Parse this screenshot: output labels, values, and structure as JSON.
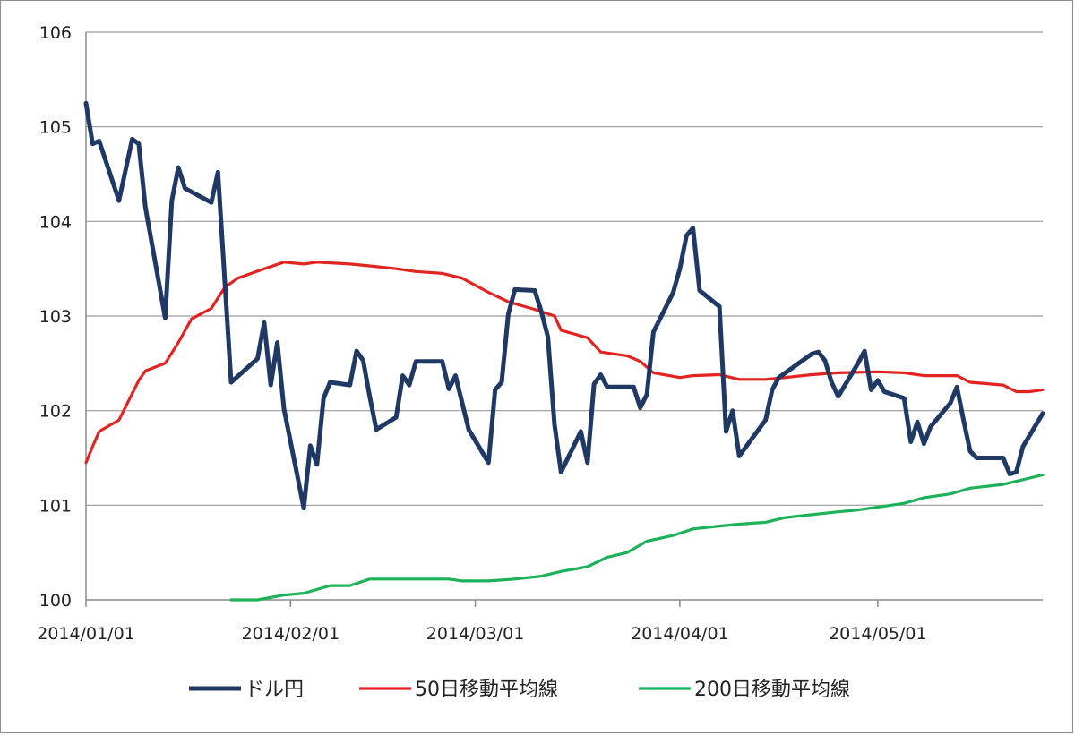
{
  "chart_data": {
    "type": "line",
    "title": "",
    "xlabel": "",
    "ylabel": "",
    "x_range": [
      "2014-01-01",
      "2014-05-26"
    ],
    "ylim": [
      100,
      106
    ],
    "y_ticks": [
      "100",
      "101",
      "102",
      "103",
      "104",
      "105",
      "106"
    ],
    "x_ticks": [
      {
        "date": "2014-01-01",
        "label": "2014/01/01"
      },
      {
        "date": "2014-02-01",
        "label": "2014/02/01"
      },
      {
        "date": "2014-03-01",
        "label": "2014/03/01"
      },
      {
        "date": "2014-04-01",
        "label": "2014/04/01"
      },
      {
        "date": "2014-05-01",
        "label": "2014/05/01"
      }
    ],
    "grid": "horizontal",
    "legend_position": "bottom",
    "series": [
      {
        "name": "ドル円",
        "color": "#1f3864",
        "points": [
          [
            "2014-01-01",
            105.25
          ],
          [
            "2014-01-02",
            104.82
          ],
          [
            "2014-01-03",
            104.85
          ],
          [
            "2014-01-06",
            104.22
          ],
          [
            "2014-01-08",
            104.87
          ],
          [
            "2014-01-09",
            104.82
          ],
          [
            "2014-01-10",
            104.15
          ],
          [
            "2014-01-13",
            102.98
          ],
          [
            "2014-01-14",
            104.22
          ],
          [
            "2014-01-15",
            104.57
          ],
          [
            "2014-01-16",
            104.35
          ],
          [
            "2014-01-20",
            104.2
          ],
          [
            "2014-01-21",
            104.52
          ],
          [
            "2014-01-23",
            102.3
          ],
          [
            "2014-01-27",
            102.55
          ],
          [
            "2014-01-28",
            102.93
          ],
          [
            "2014-01-29",
            102.27
          ],
          [
            "2014-01-30",
            102.72
          ],
          [
            "2014-01-31",
            102.02
          ],
          [
            "2014-02-03",
            100.97
          ],
          [
            "2014-02-04",
            101.63
          ],
          [
            "2014-02-05",
            101.43
          ],
          [
            "2014-02-06",
            102.13
          ],
          [
            "2014-02-07",
            102.3
          ],
          [
            "2014-02-10",
            102.27
          ],
          [
            "2014-02-11",
            102.63
          ],
          [
            "2014-02-12",
            102.53
          ],
          [
            "2014-02-13",
            102.15
          ],
          [
            "2014-02-14",
            101.8
          ],
          [
            "2014-02-17",
            101.93
          ],
          [
            "2014-02-18",
            102.37
          ],
          [
            "2014-02-19",
            102.27
          ],
          [
            "2014-02-20",
            102.52
          ],
          [
            "2014-02-24",
            102.52
          ],
          [
            "2014-02-25",
            102.23
          ],
          [
            "2014-02-26",
            102.37
          ],
          [
            "2014-02-28",
            101.8
          ],
          [
            "2014-03-03",
            101.45
          ],
          [
            "2014-03-04",
            102.22
          ],
          [
            "2014-03-05",
            102.3
          ],
          [
            "2014-03-06",
            103.02
          ],
          [
            "2014-03-07",
            103.28
          ],
          [
            "2014-03-10",
            103.27
          ],
          [
            "2014-03-11",
            103.05
          ],
          [
            "2014-03-12",
            102.78
          ],
          [
            "2014-03-13",
            101.85
          ],
          [
            "2014-03-14",
            101.35
          ],
          [
            "2014-03-17",
            101.78
          ],
          [
            "2014-03-18",
            101.45
          ],
          [
            "2014-03-19",
            102.28
          ],
          [
            "2014-03-20",
            102.38
          ],
          [
            "2014-03-21",
            102.25
          ],
          [
            "2014-03-25",
            102.25
          ],
          [
            "2014-03-26",
            102.03
          ],
          [
            "2014-03-27",
            102.17
          ],
          [
            "2014-03-28",
            102.83
          ],
          [
            "2014-03-31",
            103.25
          ],
          [
            "2014-04-01",
            103.5
          ],
          [
            "2014-04-02",
            103.85
          ],
          [
            "2014-04-03",
            103.93
          ],
          [
            "2014-04-04",
            103.27
          ],
          [
            "2014-04-07",
            103.1
          ],
          [
            "2014-04-08",
            101.78
          ],
          [
            "2014-04-09",
            102.0
          ],
          [
            "2014-04-10",
            101.52
          ],
          [
            "2014-04-14",
            101.9
          ],
          [
            "2014-04-15",
            102.22
          ],
          [
            "2014-04-16",
            102.35
          ],
          [
            "2014-04-21",
            102.6
          ],
          [
            "2014-04-22",
            102.62
          ],
          [
            "2014-04-23",
            102.53
          ],
          [
            "2014-04-24",
            102.3
          ],
          [
            "2014-04-25",
            102.15
          ],
          [
            "2014-04-28",
            102.5
          ],
          [
            "2014-04-29",
            102.63
          ],
          [
            "2014-04-30",
            102.22
          ],
          [
            "2014-05-01",
            102.32
          ],
          [
            "2014-05-02",
            102.2
          ],
          [
            "2014-05-05",
            102.13
          ],
          [
            "2014-05-06",
            101.67
          ],
          [
            "2014-05-07",
            101.88
          ],
          [
            "2014-05-08",
            101.65
          ],
          [
            "2014-05-09",
            101.83
          ],
          [
            "2014-05-12",
            102.08
          ],
          [
            "2014-05-13",
            102.25
          ],
          [
            "2014-05-14",
            101.9
          ],
          [
            "2014-05-15",
            101.57
          ],
          [
            "2014-05-16",
            101.5
          ],
          [
            "2014-05-20",
            101.5
          ],
          [
            "2014-05-21",
            101.33
          ],
          [
            "2014-05-22",
            101.35
          ],
          [
            "2014-05-23",
            101.62
          ],
          [
            "2014-05-26",
            101.97
          ]
        ]
      },
      {
        "name": "50日移動平均線",
        "color": "#e32320",
        "points": [
          [
            "2014-01-01",
            101.45
          ],
          [
            "2014-01-02",
            101.62
          ],
          [
            "2014-01-03",
            101.78
          ],
          [
            "2014-01-06",
            101.9
          ],
          [
            "2014-01-08",
            102.18
          ],
          [
            "2014-01-09",
            102.32
          ],
          [
            "2014-01-10",
            102.42
          ],
          [
            "2014-01-13",
            102.5
          ],
          [
            "2014-01-15",
            102.72
          ],
          [
            "2014-01-17",
            102.97
          ],
          [
            "2014-01-20",
            103.08
          ],
          [
            "2014-01-22",
            103.3
          ],
          [
            "2014-01-24",
            103.4
          ],
          [
            "2014-01-28",
            103.5
          ],
          [
            "2014-01-31",
            103.57
          ],
          [
            "2014-02-03",
            103.55
          ],
          [
            "2014-02-05",
            103.57
          ],
          [
            "2014-02-10",
            103.55
          ],
          [
            "2014-02-13",
            103.53
          ],
          [
            "2014-02-17",
            103.5
          ],
          [
            "2014-02-20",
            103.47
          ],
          [
            "2014-02-24",
            103.45
          ],
          [
            "2014-02-27",
            103.4
          ],
          [
            "2014-03-03",
            103.25
          ],
          [
            "2014-03-06",
            103.15
          ],
          [
            "2014-03-10",
            103.07
          ],
          [
            "2014-03-13",
            103.0
          ],
          [
            "2014-03-14",
            102.85
          ],
          [
            "2014-03-18",
            102.77
          ],
          [
            "2014-03-20",
            102.62
          ],
          [
            "2014-03-24",
            102.58
          ],
          [
            "2014-03-26",
            102.52
          ],
          [
            "2014-03-28",
            102.4
          ],
          [
            "2014-04-01",
            102.35
          ],
          [
            "2014-04-03",
            102.37
          ],
          [
            "2014-04-07",
            102.38
          ],
          [
            "2014-04-10",
            102.33
          ],
          [
            "2014-04-14",
            102.33
          ],
          [
            "2014-04-17",
            102.35
          ],
          [
            "2014-04-21",
            102.38
          ],
          [
            "2014-04-25",
            102.4
          ],
          [
            "2014-05-01",
            102.41
          ],
          [
            "2014-05-05",
            102.4
          ],
          [
            "2014-05-08",
            102.37
          ],
          [
            "2014-05-13",
            102.37
          ],
          [
            "2014-05-15",
            102.3
          ],
          [
            "2014-05-20",
            102.27
          ],
          [
            "2014-05-22",
            102.2
          ],
          [
            "2014-05-24",
            102.2
          ],
          [
            "2014-05-26",
            102.22
          ]
        ]
      },
      {
        "name": "200日移動平均線",
        "color": "#1db259",
        "points": [
          [
            "2014-01-23",
            100.0
          ],
          [
            "2014-01-27",
            100.0
          ],
          [
            "2014-01-31",
            100.05
          ],
          [
            "2014-02-03",
            100.07
          ],
          [
            "2014-02-07",
            100.15
          ],
          [
            "2014-02-10",
            100.15
          ],
          [
            "2014-02-13",
            100.22
          ],
          [
            "2014-02-17",
            100.22
          ],
          [
            "2014-02-25",
            100.22
          ],
          [
            "2014-02-27",
            100.2
          ],
          [
            "2014-03-03",
            100.2
          ],
          [
            "2014-03-07",
            100.22
          ],
          [
            "2014-03-11",
            100.25
          ],
          [
            "2014-03-14",
            100.3
          ],
          [
            "2014-03-18",
            100.35
          ],
          [
            "2014-03-21",
            100.45
          ],
          [
            "2014-03-24",
            100.5
          ],
          [
            "2014-03-27",
            100.62
          ],
          [
            "2014-03-31",
            100.68
          ],
          [
            "2014-04-03",
            100.75
          ],
          [
            "2014-04-07",
            100.78
          ],
          [
            "2014-04-10",
            100.8
          ],
          [
            "2014-04-14",
            100.82
          ],
          [
            "2014-04-17",
            100.87
          ],
          [
            "2014-04-21",
            100.9
          ],
          [
            "2014-04-25",
            100.93
          ],
          [
            "2014-04-28",
            100.95
          ],
          [
            "2014-05-01",
            100.98
          ],
          [
            "2014-05-05",
            101.02
          ],
          [
            "2014-05-08",
            101.08
          ],
          [
            "2014-05-12",
            101.12
          ],
          [
            "2014-05-15",
            101.18
          ],
          [
            "2014-05-20",
            101.22
          ],
          [
            "2014-05-23",
            101.27
          ],
          [
            "2014-05-26",
            101.32
          ]
        ]
      }
    ]
  }
}
